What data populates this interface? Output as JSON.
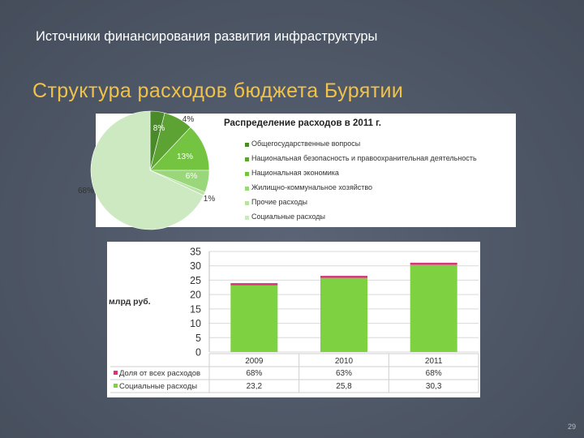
{
  "slide": {
    "header": "Источники финансирования развития инфраструктуры",
    "title": "Структура расходов бюджета Бурятии",
    "page_number": "29"
  },
  "chart_data": [
    {
      "type": "pie",
      "title": "Распределение расходов в 2011 г.",
      "slices": [
        {
          "label": "Общегосударственные вопросы",
          "value": 4,
          "display": "4%",
          "color": "#4a8a2a"
        },
        {
          "label": "Национальная безопасность и правоохранительная деятельность",
          "value": 8,
          "display": "8%",
          "color": "#5ca334"
        },
        {
          "label": "Национальная экономика",
          "value": 13,
          "display": "13%",
          "color": "#74c442"
        },
        {
          "label": "Жилищно-коммунальное хозяйство",
          "value": 6,
          "display": "6%",
          "color": "#9ad67a"
        },
        {
          "label": "Прочие расходы",
          "value": 1,
          "display": "1%",
          "color": "#b9e2a4"
        },
        {
          "label": "Социальные расходы",
          "value": 68,
          "display": "68%",
          "color": "#cde9c1"
        }
      ],
      "legend_position": "right"
    },
    {
      "type": "bar",
      "ylabel": "млрд руб.",
      "ylim": [
        0,
        35
      ],
      "yticks": [
        0,
        5,
        10,
        15,
        20,
        25,
        30,
        35
      ],
      "categories": [
        "2009",
        "2010",
        "2011"
      ],
      "grid": true,
      "series": [
        {
          "name": "Социальные расходы",
          "values": [
            23.2,
            25.8,
            30.3
          ],
          "display": [
            "23,2",
            "25,8",
            "30,3"
          ],
          "color": "#7ed140"
        },
        {
          "name": "Доля от всех расходов",
          "values": [
            68,
            63,
            68
          ],
          "display": [
            "68%",
            "63%",
            "68%"
          ],
          "color": "#d8347a"
        }
      ]
    }
  ]
}
